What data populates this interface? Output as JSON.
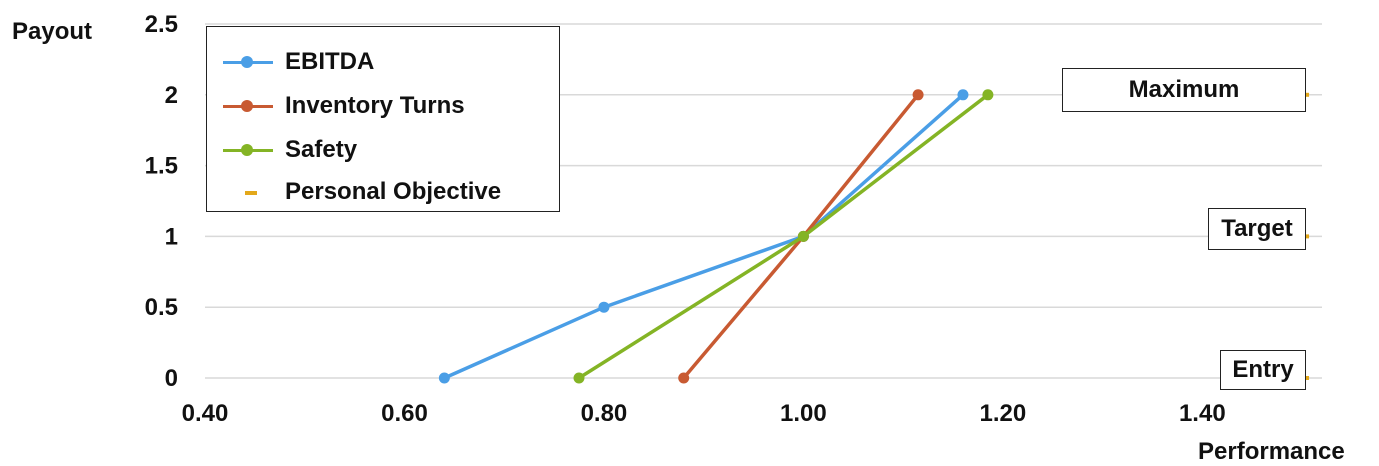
{
  "chart_data": {
    "type": "line",
    "ylabel": "Payout",
    "xlabel": "Performance",
    "xlim": [
      0.4,
      1.52
    ],
    "ylim": [
      0,
      2.5
    ],
    "x_ticks": [
      "0.40",
      "0.60",
      "0.80",
      "1.00",
      "1.20",
      "1.40"
    ],
    "x_tick_values": [
      0.4,
      0.6,
      0.8,
      1.0,
      1.2,
      1.4
    ],
    "y_ticks": [
      "0",
      "0.5",
      "1",
      "1.5",
      "2",
      "2.5"
    ],
    "y_tick_values": [
      0,
      0.5,
      1,
      1.5,
      2,
      2.5
    ],
    "grid": "horizontal",
    "legend_position": "top-left",
    "series": [
      {
        "name": "EBITDA",
        "color": "#4a9ee6",
        "marker": "circle",
        "points": [
          [
            0.64,
            0
          ],
          [
            0.8,
            0.5
          ],
          [
            1.0,
            1.0
          ],
          [
            1.16,
            2.0
          ]
        ]
      },
      {
        "name": "Inventory Turns",
        "color": "#c85a32",
        "marker": "circle",
        "points": [
          [
            0.88,
            0
          ],
          [
            1.0,
            1.0
          ],
          [
            1.115,
            2.0
          ]
        ]
      },
      {
        "name": "Safety",
        "color": "#84b425",
        "marker": "circle",
        "points": [
          [
            0.775,
            0
          ],
          [
            1.0,
            1.0
          ],
          [
            1.185,
            2.0
          ]
        ]
      },
      {
        "name": "Personal Objective",
        "color": "#e3a81a",
        "marker": "dash",
        "points": [
          [
            1.5,
            0
          ],
          [
            1.5,
            1.0
          ],
          [
            1.5,
            2.0
          ]
        ]
      }
    ],
    "annotations": [
      {
        "label": "Maximum",
        "y": 2
      },
      {
        "label": "Target",
        "y": 1
      },
      {
        "label": "Entry",
        "y": 0
      }
    ]
  }
}
